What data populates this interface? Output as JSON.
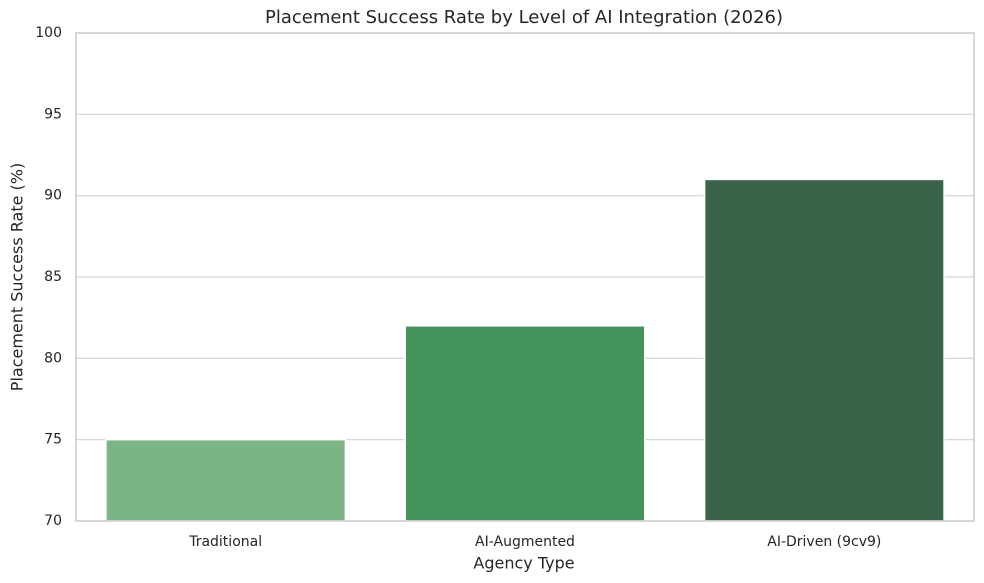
{
  "chart_data": {
    "type": "bar",
    "title": "Placement Success Rate by Level of AI Integration (2026)",
    "x_label": "Agency Type",
    "y_label": "Placement Success Rate (%)",
    "categories": [
      "Traditional",
      "AI-Augmented",
      "AI-Driven (9cv9)"
    ],
    "values": [
      75,
      82,
      91
    ],
    "colors": [
      "#7bb583",
      "#43935a",
      "#3a6449"
    ],
    "ylim": [
      70,
      100
    ],
    "yticks": [
      70,
      75,
      80,
      85,
      90,
      95,
      100
    ],
    "grid": true
  }
}
